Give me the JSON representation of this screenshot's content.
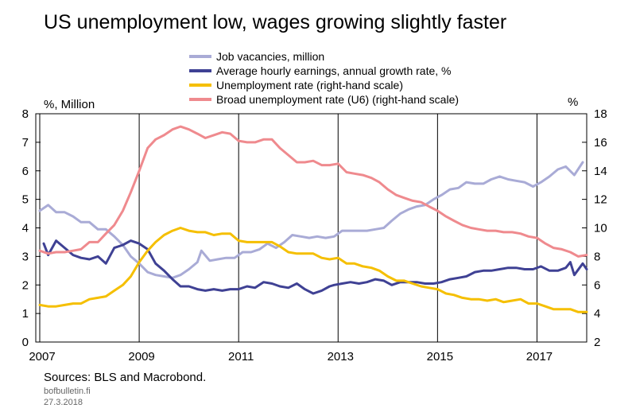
{
  "chart_data": {
    "type": "line",
    "title": "US unemployment low, wages growing slightly faster",
    "ylabel_left": "%, Million",
    "ylabel_right": "%",
    "ylim_left": [
      0,
      8
    ],
    "ylim_right": [
      2,
      18
    ],
    "xlim": [
      2006.92,
      2018.0
    ],
    "x_ticks": [
      2007,
      2009,
      2011,
      2013,
      2015,
      2017
    ],
    "x_tick_labels": [
      "2007",
      "2009",
      "2011",
      "2013",
      "2015",
      "2017"
    ],
    "y_left_ticks": [
      0,
      1,
      2,
      3,
      4,
      5,
      6,
      7,
      8
    ],
    "y_left_tick_labels": [
      "0",
      "1",
      "2",
      "3",
      "4",
      "5",
      "6",
      "7",
      "8"
    ],
    "y_right_ticks": [
      2,
      4,
      6,
      8,
      10,
      12,
      14,
      16,
      18
    ],
    "y_right_tick_labels": [
      "2",
      "4",
      "6",
      "8",
      "10",
      "12",
      "14",
      "16",
      "18"
    ],
    "gridlines": "vertical",
    "legend_position": "top",
    "series": [
      {
        "name": "Job vacancies, million",
        "axis": "left",
        "color": "#a9abd6",
        "points": [
          [
            2007.0,
            4.6
          ],
          [
            2007.17,
            4.8
          ],
          [
            2007.33,
            4.55
          ],
          [
            2007.5,
            4.55
          ],
          [
            2007.67,
            4.4
          ],
          [
            2007.83,
            4.2
          ],
          [
            2008.0,
            4.2
          ],
          [
            2008.17,
            3.95
          ],
          [
            2008.33,
            3.95
          ],
          [
            2008.5,
            3.7
          ],
          [
            2008.67,
            3.4
          ],
          [
            2008.83,
            3.0
          ],
          [
            2009.0,
            2.75
          ],
          [
            2009.17,
            2.45
          ],
          [
            2009.33,
            2.35
          ],
          [
            2009.5,
            2.3
          ],
          [
            2009.67,
            2.25
          ],
          [
            2009.83,
            2.35
          ],
          [
            2010.0,
            2.55
          ],
          [
            2010.17,
            2.8
          ],
          [
            2010.25,
            3.2
          ],
          [
            2010.42,
            2.85
          ],
          [
            2010.58,
            2.9
          ],
          [
            2010.75,
            2.95
          ],
          [
            2010.92,
            2.95
          ],
          [
            2011.08,
            3.15
          ],
          [
            2011.25,
            3.15
          ],
          [
            2011.42,
            3.25
          ],
          [
            2011.58,
            3.45
          ],
          [
            2011.75,
            3.3
          ],
          [
            2011.92,
            3.5
          ],
          [
            2012.08,
            3.75
          ],
          [
            2012.25,
            3.7
          ],
          [
            2012.42,
            3.65
          ],
          [
            2012.58,
            3.7
          ],
          [
            2012.75,
            3.65
          ],
          [
            2012.92,
            3.7
          ],
          [
            2013.08,
            3.9
          ],
          [
            2013.25,
            3.9
          ],
          [
            2013.42,
            3.9
          ],
          [
            2013.58,
            3.9
          ],
          [
            2013.75,
            3.95
          ],
          [
            2013.92,
            4.0
          ],
          [
            2014.08,
            4.25
          ],
          [
            2014.25,
            4.5
          ],
          [
            2014.42,
            4.65
          ],
          [
            2014.58,
            4.75
          ],
          [
            2014.75,
            4.8
          ],
          [
            2014.92,
            5.0
          ],
          [
            2015.08,
            5.15
          ],
          [
            2015.25,
            5.35
          ],
          [
            2015.42,
            5.4
          ],
          [
            2015.58,
            5.6
          ],
          [
            2015.75,
            5.55
          ],
          [
            2015.92,
            5.55
          ],
          [
            2016.08,
            5.7
          ],
          [
            2016.25,
            5.8
          ],
          [
            2016.42,
            5.7
          ],
          [
            2016.58,
            5.65
          ],
          [
            2016.75,
            5.6
          ],
          [
            2016.92,
            5.45
          ],
          [
            2017.08,
            5.6
          ],
          [
            2017.25,
            5.8
          ],
          [
            2017.42,
            6.05
          ],
          [
            2017.58,
            6.15
          ],
          [
            2017.75,
            5.85
          ],
          [
            2017.92,
            6.3
          ]
        ]
      },
      {
        "name": "Average hourly earnings, annual growth rate, %",
        "axis": "left",
        "color": "#3f4194",
        "points": [
          [
            2007.08,
            3.45
          ],
          [
            2007.17,
            3.05
          ],
          [
            2007.33,
            3.55
          ],
          [
            2007.5,
            3.3
          ],
          [
            2007.67,
            3.05
          ],
          [
            2007.83,
            2.95
          ],
          [
            2008.0,
            2.9
          ],
          [
            2008.17,
            3.0
          ],
          [
            2008.33,
            2.75
          ],
          [
            2008.5,
            3.3
          ],
          [
            2008.67,
            3.4
          ],
          [
            2008.83,
            3.55
          ],
          [
            2009.0,
            3.45
          ],
          [
            2009.17,
            3.25
          ],
          [
            2009.33,
            2.75
          ],
          [
            2009.5,
            2.5
          ],
          [
            2009.67,
            2.2
          ],
          [
            2009.83,
            1.95
          ],
          [
            2010.0,
            1.95
          ],
          [
            2010.17,
            1.85
          ],
          [
            2010.33,
            1.8
          ],
          [
            2010.5,
            1.85
          ],
          [
            2010.67,
            1.8
          ],
          [
            2010.83,
            1.85
          ],
          [
            2011.0,
            1.85
          ],
          [
            2011.17,
            1.95
          ],
          [
            2011.33,
            1.9
          ],
          [
            2011.5,
            2.1
          ],
          [
            2011.67,
            2.05
          ],
          [
            2011.83,
            1.95
          ],
          [
            2012.0,
            1.9
          ],
          [
            2012.17,
            2.05
          ],
          [
            2012.33,
            1.85
          ],
          [
            2012.5,
            1.7
          ],
          [
            2012.67,
            1.8
          ],
          [
            2012.83,
            1.95
          ],
          [
            2012.92,
            2.0
          ],
          [
            2013.08,
            2.05
          ],
          [
            2013.25,
            2.1
          ],
          [
            2013.42,
            2.05
          ],
          [
            2013.58,
            2.1
          ],
          [
            2013.75,
            2.2
          ],
          [
            2013.92,
            2.15
          ],
          [
            2014.08,
            2.0
          ],
          [
            2014.25,
            2.1
          ],
          [
            2014.42,
            2.1
          ],
          [
            2014.58,
            2.1
          ],
          [
            2014.75,
            2.05
          ],
          [
            2014.92,
            2.05
          ],
          [
            2015.08,
            2.1
          ],
          [
            2015.25,
            2.2
          ],
          [
            2015.42,
            2.25
          ],
          [
            2015.58,
            2.3
          ],
          [
            2015.75,
            2.45
          ],
          [
            2015.92,
            2.5
          ],
          [
            2016.08,
            2.5
          ],
          [
            2016.25,
            2.55
          ],
          [
            2016.42,
            2.6
          ],
          [
            2016.58,
            2.6
          ],
          [
            2016.75,
            2.55
          ],
          [
            2016.92,
            2.55
          ],
          [
            2017.08,
            2.65
          ],
          [
            2017.25,
            2.5
          ],
          [
            2017.42,
            2.5
          ],
          [
            2017.58,
            2.6
          ],
          [
            2017.67,
            2.8
          ],
          [
            2017.75,
            2.35
          ],
          [
            2017.92,
            2.75
          ],
          [
            2018.0,
            2.55
          ]
        ]
      },
      {
        "name": "Unemployment rate (right-hand scale)",
        "axis": "right",
        "color": "#f5bf00",
        "points": [
          [
            2007.0,
            4.6
          ],
          [
            2007.17,
            4.5
          ],
          [
            2007.33,
            4.5
          ],
          [
            2007.5,
            4.6
          ],
          [
            2007.67,
            4.7
          ],
          [
            2007.83,
            4.7
          ],
          [
            2008.0,
            5.0
          ],
          [
            2008.17,
            5.1
          ],
          [
            2008.33,
            5.2
          ],
          [
            2008.5,
            5.6
          ],
          [
            2008.67,
            6.0
          ],
          [
            2008.83,
            6.6
          ],
          [
            2009.0,
            7.6
          ],
          [
            2009.17,
            8.4
          ],
          [
            2009.33,
            9.0
          ],
          [
            2009.5,
            9.5
          ],
          [
            2009.67,
            9.8
          ],
          [
            2009.83,
            10.0
          ],
          [
            2010.0,
            9.8
          ],
          [
            2010.17,
            9.7
          ],
          [
            2010.33,
            9.7
          ],
          [
            2010.5,
            9.5
          ],
          [
            2010.67,
            9.6
          ],
          [
            2010.83,
            9.6
          ],
          [
            2011.0,
            9.1
          ],
          [
            2011.17,
            9.0
          ],
          [
            2011.33,
            9.0
          ],
          [
            2011.5,
            9.0
          ],
          [
            2011.67,
            9.0
          ],
          [
            2011.83,
            8.7
          ],
          [
            2012.0,
            8.3
          ],
          [
            2012.17,
            8.2
          ],
          [
            2012.33,
            8.2
          ],
          [
            2012.5,
            8.2
          ],
          [
            2012.67,
            7.9
          ],
          [
            2012.83,
            7.8
          ],
          [
            2013.0,
            7.9
          ],
          [
            2013.17,
            7.5
          ],
          [
            2013.33,
            7.5
          ],
          [
            2013.5,
            7.3
          ],
          [
            2013.67,
            7.2
          ],
          [
            2013.83,
            7.0
          ],
          [
            2014.0,
            6.6
          ],
          [
            2014.17,
            6.3
          ],
          [
            2014.33,
            6.3
          ],
          [
            2014.5,
            6.1
          ],
          [
            2014.67,
            5.9
          ],
          [
            2014.83,
            5.8
          ],
          [
            2015.0,
            5.7
          ],
          [
            2015.17,
            5.4
          ],
          [
            2015.33,
            5.3
          ],
          [
            2015.5,
            5.1
          ],
          [
            2015.67,
            5.0
          ],
          [
            2015.83,
            5.0
          ],
          [
            2016.0,
            4.9
          ],
          [
            2016.17,
            5.0
          ],
          [
            2016.33,
            4.8
          ],
          [
            2016.5,
            4.9
          ],
          [
            2016.67,
            5.0
          ],
          [
            2016.83,
            4.7
          ],
          [
            2017.0,
            4.7
          ],
          [
            2017.17,
            4.5
          ],
          [
            2017.33,
            4.3
          ],
          [
            2017.5,
            4.3
          ],
          [
            2017.67,
            4.3
          ],
          [
            2017.83,
            4.1
          ],
          [
            2018.0,
            4.1
          ]
        ]
      },
      {
        "name": "Broad unemployment rate (U6) (right-hand scale)",
        "axis": "right",
        "color": "#ef8a8e",
        "points": [
          [
            2007.0,
            8.4
          ],
          [
            2007.17,
            8.2
          ],
          [
            2007.33,
            8.3
          ],
          [
            2007.5,
            8.3
          ],
          [
            2007.67,
            8.4
          ],
          [
            2007.83,
            8.5
          ],
          [
            2008.0,
            9.0
          ],
          [
            2008.17,
            9.0
          ],
          [
            2008.33,
            9.6
          ],
          [
            2008.5,
            10.2
          ],
          [
            2008.67,
            11.2
          ],
          [
            2008.83,
            12.5
          ],
          [
            2009.0,
            14.0
          ],
          [
            2009.17,
            15.6
          ],
          [
            2009.33,
            16.2
          ],
          [
            2009.5,
            16.5
          ],
          [
            2009.67,
            16.9
          ],
          [
            2009.83,
            17.1
          ],
          [
            2010.0,
            16.9
          ],
          [
            2010.17,
            16.6
          ],
          [
            2010.33,
            16.3
          ],
          [
            2010.5,
            16.5
          ],
          [
            2010.67,
            16.7
          ],
          [
            2010.83,
            16.6
          ],
          [
            2011.0,
            16.1
          ],
          [
            2011.17,
            16.0
          ],
          [
            2011.33,
            16.0
          ],
          [
            2011.5,
            16.2
          ],
          [
            2011.67,
            16.2
          ],
          [
            2011.83,
            15.6
          ],
          [
            2012.0,
            15.1
          ],
          [
            2012.17,
            14.6
          ],
          [
            2012.33,
            14.6
          ],
          [
            2012.5,
            14.7
          ],
          [
            2012.67,
            14.4
          ],
          [
            2012.83,
            14.4
          ],
          [
            2013.0,
            14.5
          ],
          [
            2013.17,
            13.9
          ],
          [
            2013.33,
            13.8
          ],
          [
            2013.5,
            13.7
          ],
          [
            2013.67,
            13.5
          ],
          [
            2013.83,
            13.2
          ],
          [
            2014.0,
            12.7
          ],
          [
            2014.17,
            12.3
          ],
          [
            2014.33,
            12.1
          ],
          [
            2014.5,
            11.9
          ],
          [
            2014.67,
            11.8
          ],
          [
            2014.83,
            11.5
          ],
          [
            2015.0,
            11.2
          ],
          [
            2015.17,
            10.8
          ],
          [
            2015.33,
            10.5
          ],
          [
            2015.5,
            10.2
          ],
          [
            2015.67,
            10.0
          ],
          [
            2015.83,
            9.9
          ],
          [
            2016.0,
            9.8
          ],
          [
            2016.17,
            9.8
          ],
          [
            2016.33,
            9.7
          ],
          [
            2016.5,
            9.7
          ],
          [
            2016.67,
            9.6
          ],
          [
            2016.83,
            9.4
          ],
          [
            2017.0,
            9.3
          ],
          [
            2017.17,
            8.9
          ],
          [
            2017.33,
            8.6
          ],
          [
            2017.5,
            8.5
          ],
          [
            2017.67,
            8.3
          ],
          [
            2017.83,
            8.0
          ],
          [
            2018.0,
            8.1
          ]
        ]
      }
    ]
  },
  "footer": {
    "sources": "Sources: BLS and Macrobond.",
    "site": "bofbulletin.fi",
    "date": "27.3.2018"
  }
}
